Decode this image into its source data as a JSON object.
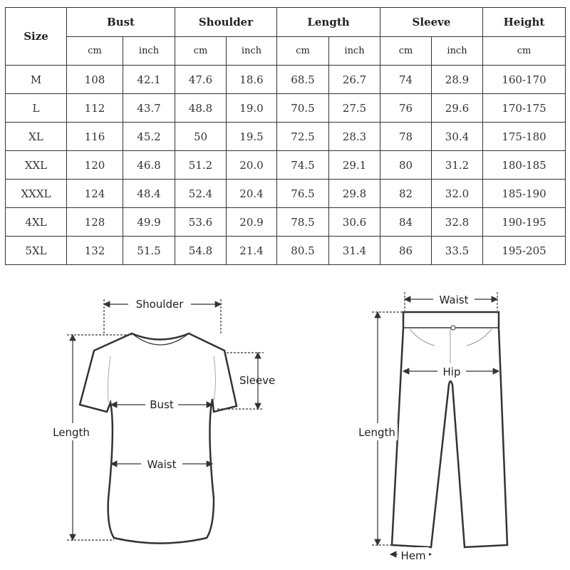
{
  "table": {
    "size_header": "Size",
    "groups": [
      {
        "label": "Bust",
        "units": [
          "cm",
          "inch"
        ]
      },
      {
        "label": "Shoulder",
        "units": [
          "cm",
          "inch"
        ]
      },
      {
        "label": "Length",
        "units": [
          "cm",
          "inch"
        ]
      },
      {
        "label": "Sleeve",
        "units": [
          "cm",
          "inch"
        ]
      },
      {
        "label": "Height",
        "units": [
          "cm"
        ]
      }
    ],
    "rows": [
      [
        "M",
        "108",
        "42.1",
        "47.6",
        "18.6",
        "68.5",
        "26.7",
        "74",
        "28.9",
        "160-170"
      ],
      [
        "L",
        "112",
        "43.7",
        "48.8",
        "19.0",
        "70.5",
        "27.5",
        "76",
        "29.6",
        "170-175"
      ],
      [
        "XL",
        "116",
        "45.2",
        "50",
        "19.5",
        "72.5",
        "28.3",
        "78",
        "30.4",
        "175-180"
      ],
      [
        "XXL",
        "120",
        "46.8",
        "51.2",
        "20.0",
        "74.5",
        "29.1",
        "80",
        "31.2",
        "180-185"
      ],
      [
        "XXXL",
        "124",
        "48.4",
        "52.4",
        "20.4",
        "76.5",
        "29.8",
        "82",
        "32.0",
        "185-190"
      ],
      [
        "4XL",
        "128",
        "49.9",
        "53.6",
        "20.9",
        "78.5",
        "30.6",
        "84",
        "32.8",
        "190-195"
      ],
      [
        "5XL",
        "132",
        "51.5",
        "54.8",
        "21.4",
        "80.5",
        "31.4",
        "86",
        "33.5",
        "195-205"
      ]
    ]
  },
  "shirt_diagram": {
    "labels": {
      "shoulder": "Shoulder",
      "sleeve": "Sleeve",
      "bust": "Bust",
      "length": "Length",
      "waist": "Waist"
    }
  },
  "pants_diagram": {
    "labels": {
      "waist": "Waist",
      "hip": "Hip",
      "length": "Length",
      "hem": "Hem"
    }
  }
}
